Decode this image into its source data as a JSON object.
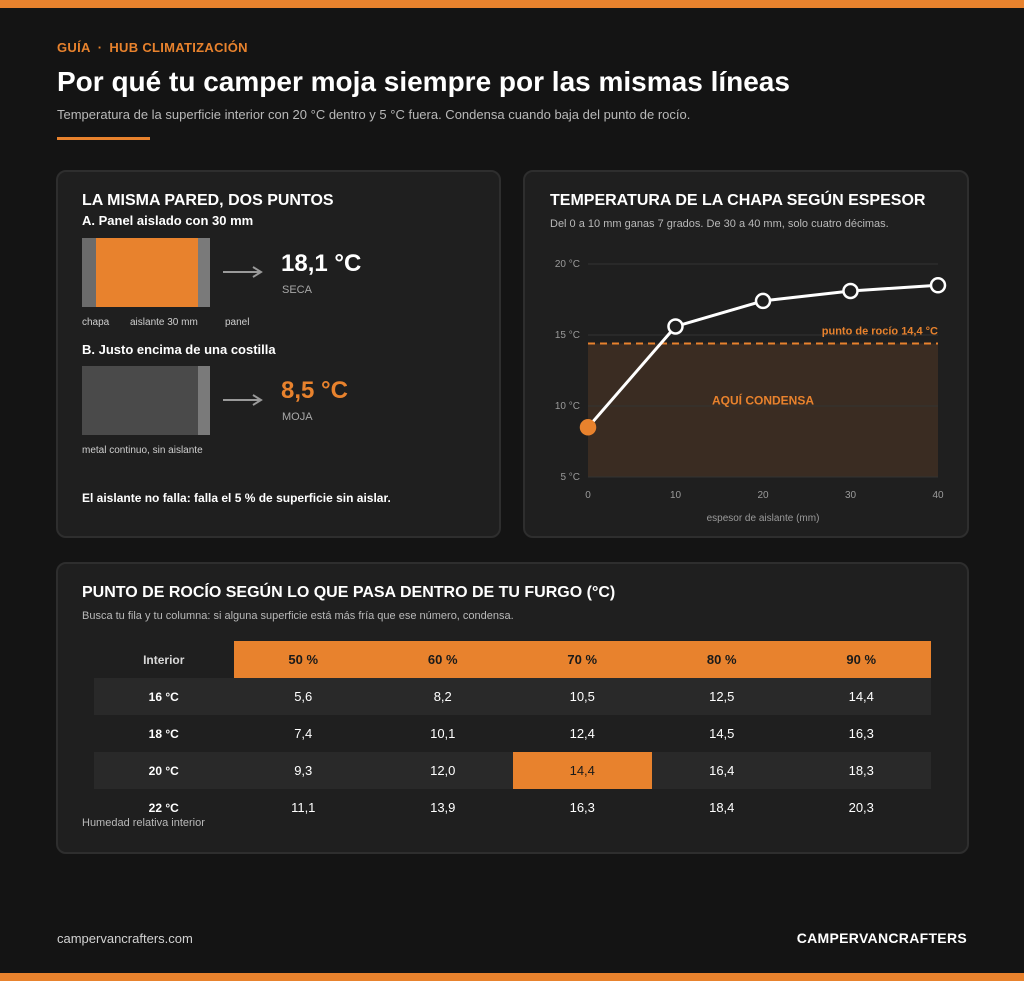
{
  "header": {
    "eyebrow_guide": "GUÍA",
    "eyebrow_sep": "·",
    "eyebrow_hub": "HUB CLIMATIZACIÓN",
    "title": "Por qué tu camper moja siempre por las mismas líneas",
    "subtitle": "Temperatura de la superficie interior con 20 °C dentro y 5 °C fuera. Condensa cuando baja del punto de rocío."
  },
  "wall_card": {
    "title": "LA MISMA PARED, DOS PUNTOS",
    "case_a": {
      "heading": "A.  Panel aislado con 30 mm",
      "labels": [
        "chapa",
        "aislante 30 mm",
        "panel"
      ],
      "temp": "18,1 °C",
      "status": "SECA",
      "temp_color": "#ffffff"
    },
    "case_b": {
      "heading": "B.  Justo encima de una costilla",
      "label": "metal continuo, sin aislante",
      "temp": "8,5 °C",
      "status": "MOJA",
      "temp_color": "#e8822d"
    },
    "note": "El aislante no falla: falla el 5 % de superficie sin aislar."
  },
  "chart_card": {
    "title": "TEMPERATURA DE LA CHAPA SEGÚN ESPESOR",
    "subtitle": "Del 0 a 10 mm ganas 7 grados. De 30 a 40 mm, solo cuatro décimas."
  },
  "chart_data": {
    "type": "line",
    "x": [
      0,
      10,
      20,
      30,
      40
    ],
    "values": [
      8.5,
      15.6,
      17.4,
      18.1,
      18.5
    ],
    "xlabel": "espesor de aislante (mm)",
    "ylabel": "",
    "xlim": [
      0,
      40
    ],
    "ylim": [
      5,
      20
    ],
    "x_ticks": [
      "0",
      "10",
      "20",
      "30",
      "40"
    ],
    "y_ticks": [
      {
        "value": 5,
        "label": "5 °C"
      },
      {
        "value": 10,
        "label": "10 °C"
      },
      {
        "value": 15,
        "label": "15 °C"
      },
      {
        "value": 20,
        "label": "20 °C"
      }
    ],
    "threshold": {
      "value": 14.4,
      "label": "punto de rocío 14,4 °C"
    },
    "zone_label": "AQUÍ CONDENSA",
    "grid": true,
    "colors": {
      "line": "#ffffff",
      "accent": "#e8822d",
      "zone": "#3a2c22"
    }
  },
  "table_card": {
    "title": "PUNTO DE ROCÍO SEGÚN LO QUE PASA DENTRO DE TU FURGO (°C)",
    "subtitle": "Busca tu fila y tu columna: si alguna superficie está más fría que ese número, condensa.",
    "corner_header": "Interior",
    "columns": [
      "50 %",
      "60 %",
      "70 %",
      "80 %",
      "90 %"
    ],
    "rows": [
      {
        "label": "16 °C",
        "cells": [
          "5,6",
          "8,2",
          "10,5",
          "12,5",
          "14,4"
        ]
      },
      {
        "label": "18 °C",
        "cells": [
          "7,4",
          "10,1",
          "12,4",
          "14,5",
          "16,3"
        ]
      },
      {
        "label": "20 °C",
        "cells": [
          "9,3",
          "12,0",
          "14,4",
          "16,4",
          "18,3"
        ]
      },
      {
        "label": "22 °C",
        "cells": [
          "11,1",
          "13,9",
          "16,3",
          "18,4",
          "20,3"
        ]
      }
    ],
    "highlight": {
      "row": 2,
      "col": 2
    },
    "footnote": "Humedad relativa interior"
  },
  "footer": {
    "url": "campervancrafters.com",
    "brand": "CAMPERVANCRAFTERS"
  },
  "colors": {
    "accent": "#e8822d",
    "background": "#141414",
    "card": "#1f1f1f"
  }
}
